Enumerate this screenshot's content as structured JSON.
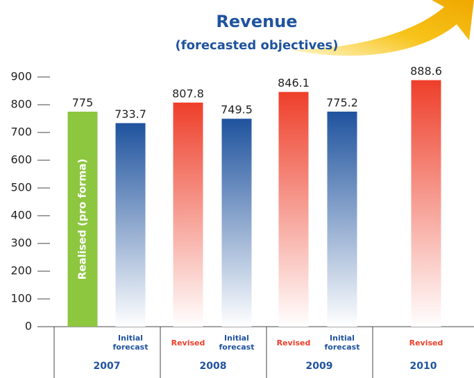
{
  "chart_data": {
    "type": "bar",
    "title": "Revenue",
    "subtitle": "(forecasted objectives)",
    "annotation": "Realised (pro forma)",
    "categories": [
      null,
      "Initial forecast",
      "Revised",
      "Initial forecast",
      "Revised",
      "Initial forecast",
      "Revised"
    ],
    "groups": [
      "2007",
      "2008",
      "2009",
      "2010"
    ],
    "values": [
      775,
      733.7,
      807.8,
      749.5,
      846.1,
      775.2,
      888.6
    ],
    "colors": [
      "#8dc63f",
      "#1f539e",
      "#ee3f2a",
      "#1f539e",
      "#ee3f2a",
      "#1f539e",
      "#ee3f2a"
    ],
    "ylim": [
      0,
      900
    ],
    "yticks": [
      0,
      100,
      200,
      300,
      400,
      500,
      600,
      700,
      800,
      900
    ]
  }
}
